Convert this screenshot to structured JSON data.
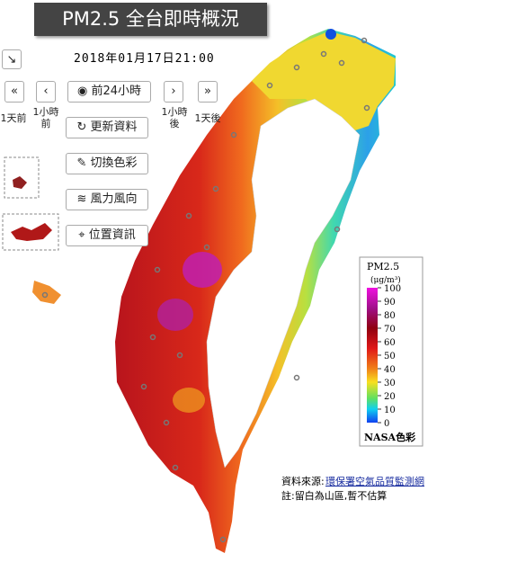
{
  "header": {
    "title": "PM2.5 全台即時概況",
    "datetime": "2018年01月17日21:00"
  },
  "controls": {
    "back_day": "1天前",
    "back_hour": "1小時前",
    "past24": "前24小時",
    "forward_hour": "1小時後",
    "forward_day": "1天後",
    "buttons": [
      "更新資料",
      "切換色彩",
      "風力風向",
      "位置資訊"
    ]
  },
  "legend": {
    "title": "PM2.5",
    "unit": "(μg/m³)",
    "range": [
      0,
      100
    ],
    "ticks": [
      0,
      10,
      20,
      30,
      40,
      50,
      60,
      70,
      80,
      90,
      100
    ],
    "palette": "NASA色彩"
  },
  "footer": {
    "source_label": "資料來源:",
    "source_link": "環保署空氣品質監測網",
    "note": "註:留白為山區,暫不估算"
  }
}
